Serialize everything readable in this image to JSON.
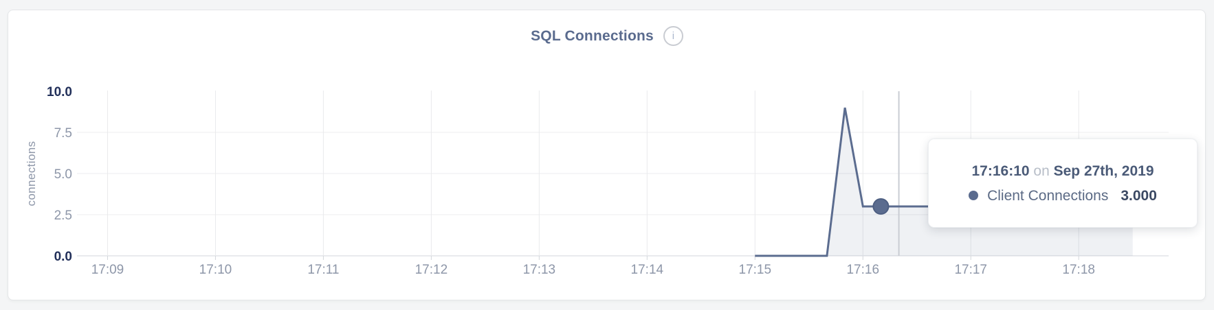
{
  "card": {
    "title": "SQL Connections",
    "info_icon": "i"
  },
  "tooltip": {
    "time": "17:16:10",
    "connector": "on",
    "date": "Sep 27th, 2019",
    "series": "Client Connections",
    "value": "3.000",
    "bullet_color": "#5a6b8e"
  },
  "colors": {
    "line": "#5b6c8f",
    "fill": "rgba(99,114,147,0.10)",
    "grid_vertical": "#e9eaec",
    "grid_horizontal": "#ededef",
    "axis_line": "#e2e4e7",
    "tick_mark": "#d3d6db",
    "crosshair": "#c9ccd3",
    "tick_label": "#8d96a8",
    "tick_label_strong": "#22305a",
    "dot_stroke": "#4e5f82"
  },
  "chart_data": {
    "type": "area",
    "title": "SQL Connections",
    "xlabel": "",
    "ylabel": "connections",
    "ylim": [
      0,
      10
    ],
    "x_range": [
      "17:08:43",
      "17:18:50"
    ],
    "grid": true,
    "legend_position": "none",
    "x_ticks": [
      "17:09",
      "17:10",
      "17:11",
      "17:12",
      "17:13",
      "17:14",
      "17:15",
      "17:16",
      "17:17",
      "17:18"
    ],
    "y_ticks": [
      "0.0",
      "2.5",
      "5.0",
      "7.5",
      "10.0"
    ],
    "y_tick_values": [
      0,
      2.5,
      5,
      7.5,
      10
    ],
    "series": [
      {
        "name": "Client Connections",
        "color": "#5b6c8f",
        "points": [
          [
            "17:15:00",
            0
          ],
          [
            "17:15:10",
            0
          ],
          [
            "17:15:20",
            0
          ],
          [
            "17:15:30",
            0
          ],
          [
            "17:15:40",
            0
          ],
          [
            "17:15:50",
            9
          ],
          [
            "17:16:00",
            3
          ],
          [
            "17:16:10",
            3
          ],
          [
            "17:16:20",
            3
          ],
          [
            "17:16:30",
            3
          ],
          [
            "17:16:40",
            3
          ],
          [
            "17:16:50",
            3
          ],
          [
            "17:17:00",
            3
          ],
          [
            "17:17:10",
            3
          ],
          [
            "17:17:20",
            3
          ],
          [
            "17:17:30",
            3
          ],
          [
            "17:17:40",
            3
          ],
          [
            "17:17:50",
            3
          ],
          [
            "17:18:00",
            3
          ],
          [
            "17:18:10",
            3
          ],
          [
            "17:18:20",
            3
          ],
          [
            "17:18:30",
            3
          ]
        ]
      }
    ],
    "highlight_point": {
      "time": "17:16:10",
      "value": 3
    },
    "crosshair_time": "17:16:20"
  }
}
